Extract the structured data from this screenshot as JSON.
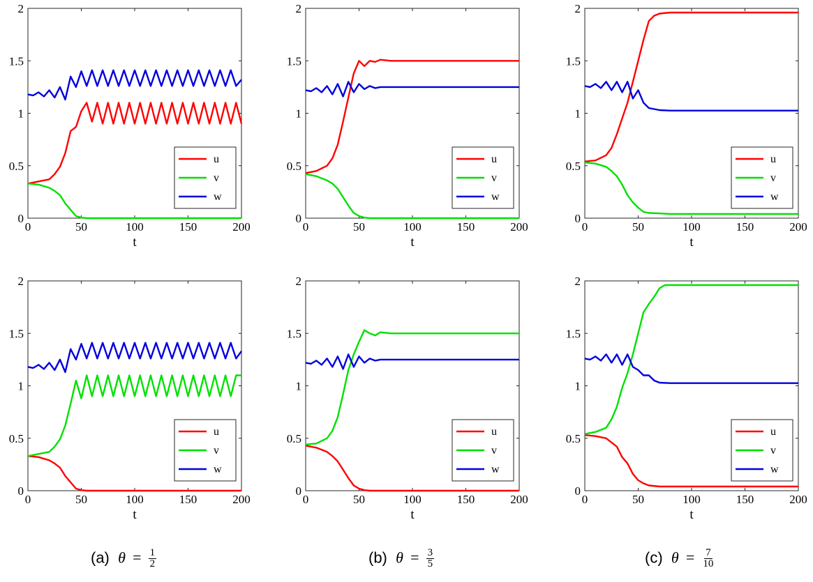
{
  "colors": {
    "u": "#ff0000",
    "v": "#00e000",
    "w": "#0000dd"
  },
  "captions": [
    {
      "label": "(a)",
      "theta": "θ",
      "eq": "=",
      "num": "1",
      "den": "2"
    },
    {
      "label": "(b)",
      "theta": "θ",
      "eq": "=",
      "num": "3",
      "den": "5"
    },
    {
      "label": "(c)",
      "theta": "θ",
      "eq": "=",
      "num": "7",
      "den": "10"
    }
  ],
  "chart_data": [
    {
      "type": "line",
      "panel": "a-top",
      "xlabel": "t",
      "ylabel": "",
      "xlim": [
        0,
        200
      ],
      "ylim": [
        0,
        2
      ],
      "xticks": [
        "0",
        "50",
        "100",
        "150",
        "200"
      ],
      "yticks": [
        "0",
        "0.5",
        "1",
        "1.5",
        "2"
      ],
      "legend": [
        "u",
        "v",
        "w"
      ],
      "series": [
        {
          "name": "u",
          "color": "#ff0000",
          "x": [
            0,
            10,
            20,
            25,
            30,
            35,
            40,
            45,
            50,
            55,
            60,
            65,
            70,
            75,
            80,
            85,
            90,
            95,
            100,
            105,
            110,
            115,
            120,
            125,
            130,
            135,
            140,
            145,
            150,
            155,
            160,
            165,
            170,
            175,
            180,
            185,
            190,
            195,
            200
          ],
          "y": [
            0.33,
            0.35,
            0.37,
            0.42,
            0.49,
            0.62,
            0.83,
            0.87,
            1.02,
            1.1,
            0.92,
            1.1,
            0.9,
            1.1,
            0.9,
            1.1,
            0.9,
            1.1,
            0.9,
            1.1,
            0.9,
            1.1,
            0.9,
            1.1,
            0.9,
            1.1,
            0.9,
            1.1,
            0.9,
            1.1,
            0.9,
            1.1,
            0.9,
            1.1,
            0.9,
            1.1,
            0.9,
            1.1,
            0.9
          ]
        },
        {
          "name": "v",
          "color": "#00e000",
          "x": [
            0,
            10,
            20,
            25,
            30,
            35,
            40,
            45,
            50,
            55,
            60,
            200
          ],
          "y": [
            0.33,
            0.32,
            0.29,
            0.26,
            0.22,
            0.14,
            0.08,
            0.02,
            0.005,
            0.0,
            0.0,
            0.0
          ]
        },
        {
          "name": "w",
          "color": "#0000dd",
          "x": [
            0,
            5,
            10,
            15,
            20,
            25,
            30,
            35,
            40,
            45,
            50,
            55,
            60,
            65,
            70,
            75,
            80,
            85,
            90,
            95,
            100,
            105,
            110,
            115,
            120,
            125,
            130,
            135,
            140,
            145,
            150,
            155,
            160,
            165,
            170,
            175,
            180,
            185,
            190,
            195,
            200
          ],
          "y": [
            1.18,
            1.17,
            1.2,
            1.16,
            1.22,
            1.15,
            1.25,
            1.13,
            1.35,
            1.25,
            1.4,
            1.26,
            1.41,
            1.26,
            1.41,
            1.26,
            1.41,
            1.26,
            1.41,
            1.26,
            1.41,
            1.26,
            1.41,
            1.26,
            1.41,
            1.26,
            1.41,
            1.26,
            1.41,
            1.26,
            1.41,
            1.26,
            1.41,
            1.26,
            1.41,
            1.26,
            1.41,
            1.26,
            1.41,
            1.26,
            1.32
          ]
        }
      ]
    },
    {
      "type": "line",
      "panel": "b-top",
      "xlabel": "t",
      "ylabel": "",
      "xlim": [
        0,
        200
      ],
      "ylim": [
        0,
        2
      ],
      "xticks": [
        "0",
        "50",
        "100",
        "150",
        "200"
      ],
      "yticks": [
        "0",
        "0.5",
        "1",
        "1.5",
        "2"
      ],
      "legend": [
        "u",
        "v",
        "w"
      ],
      "series": [
        {
          "name": "u",
          "color": "#ff0000",
          "x": [
            0,
            10,
            20,
            25,
            30,
            35,
            40,
            45,
            50,
            55,
            60,
            65,
            70,
            80,
            90,
            100,
            200
          ],
          "y": [
            0.43,
            0.45,
            0.5,
            0.57,
            0.7,
            0.92,
            1.15,
            1.38,
            1.5,
            1.45,
            1.5,
            1.49,
            1.51,
            1.5,
            1.5,
            1.5,
            1.5
          ]
        },
        {
          "name": "v",
          "color": "#00e000",
          "x": [
            0,
            10,
            20,
            25,
            30,
            35,
            40,
            45,
            50,
            55,
            60,
            200
          ],
          "y": [
            0.42,
            0.4,
            0.36,
            0.33,
            0.28,
            0.2,
            0.12,
            0.05,
            0.02,
            0.005,
            0.0,
            0.0
          ]
        },
        {
          "name": "w",
          "color": "#0000dd",
          "x": [
            0,
            5,
            10,
            15,
            20,
            25,
            30,
            35,
            40,
            45,
            50,
            55,
            60,
            65,
            70,
            80,
            90,
            100,
            200
          ],
          "y": [
            1.22,
            1.21,
            1.24,
            1.2,
            1.26,
            1.18,
            1.28,
            1.16,
            1.3,
            1.2,
            1.28,
            1.23,
            1.26,
            1.24,
            1.25,
            1.25,
            1.25,
            1.25,
            1.25
          ]
        }
      ]
    },
    {
      "type": "line",
      "panel": "c-top",
      "xlabel": "t",
      "ylabel": "",
      "xlim": [
        0,
        200
      ],
      "ylim": [
        0,
        2
      ],
      "xticks": [
        "0",
        "50",
        "100",
        "150",
        "200"
      ],
      "yticks": [
        "0",
        "0.5",
        "1",
        "1.5",
        "2"
      ],
      "legend": [
        "u",
        "v",
        "w"
      ],
      "series": [
        {
          "name": "u",
          "color": "#ff0000",
          "x": [
            0,
            10,
            20,
            25,
            30,
            35,
            40,
            45,
            50,
            55,
            60,
            65,
            70,
            80,
            90,
            100,
            200
          ],
          "y": [
            0.54,
            0.55,
            0.6,
            0.67,
            0.8,
            0.95,
            1.1,
            1.3,
            1.5,
            1.7,
            1.88,
            1.93,
            1.95,
            1.96,
            1.96,
            1.96,
            1.96
          ]
        },
        {
          "name": "v",
          "color": "#00e000",
          "x": [
            0,
            10,
            20,
            25,
            30,
            35,
            40,
            45,
            50,
            55,
            60,
            70,
            80,
            200
          ],
          "y": [
            0.53,
            0.52,
            0.49,
            0.45,
            0.4,
            0.32,
            0.22,
            0.15,
            0.1,
            0.06,
            0.05,
            0.045,
            0.04,
            0.04
          ]
        },
        {
          "name": "w",
          "color": "#0000dd",
          "x": [
            0,
            5,
            10,
            15,
            20,
            25,
            30,
            35,
            40,
            45,
            50,
            55,
            60,
            65,
            70,
            80,
            90,
            100,
            200
          ],
          "y": [
            1.26,
            1.25,
            1.28,
            1.24,
            1.3,
            1.22,
            1.3,
            1.2,
            1.3,
            1.14,
            1.22,
            1.1,
            1.05,
            1.04,
            1.03,
            1.025,
            1.025,
            1.025,
            1.025
          ]
        }
      ]
    },
    {
      "type": "line",
      "panel": "a-bottom",
      "xlabel": "t",
      "ylabel": "",
      "xlim": [
        0,
        200
      ],
      "ylim": [
        0,
        2
      ],
      "xticks": [
        "0",
        "50",
        "100",
        "150",
        "200"
      ],
      "yticks": [
        "0",
        "0.5",
        "1",
        "1.5",
        "2"
      ],
      "legend": [
        "u",
        "v",
        "w"
      ],
      "series": [
        {
          "name": "u",
          "color": "#ff0000",
          "x": [
            0,
            10,
            20,
            25,
            30,
            35,
            40,
            45,
            50,
            55,
            60,
            200
          ],
          "y": [
            0.33,
            0.32,
            0.29,
            0.26,
            0.22,
            0.14,
            0.08,
            0.02,
            0.005,
            0.0,
            0.0,
            0.0
          ]
        },
        {
          "name": "v",
          "color": "#00e000",
          "x": [
            0,
            10,
            20,
            25,
            30,
            35,
            40,
            45,
            50,
            55,
            60,
            65,
            70,
            75,
            80,
            85,
            90,
            95,
            100,
            105,
            110,
            115,
            120,
            125,
            130,
            135,
            140,
            145,
            150,
            155,
            160,
            165,
            170,
            175,
            180,
            185,
            190,
            195,
            200
          ],
          "y": [
            0.33,
            0.35,
            0.37,
            0.42,
            0.49,
            0.62,
            0.83,
            1.05,
            0.88,
            1.1,
            0.9,
            1.1,
            0.9,
            1.1,
            0.9,
            1.1,
            0.9,
            1.1,
            0.9,
            1.1,
            0.9,
            1.1,
            0.9,
            1.1,
            0.9,
            1.1,
            0.9,
            1.1,
            0.9,
            1.1,
            0.9,
            1.1,
            0.9,
            1.1,
            0.9,
            1.1,
            0.9,
            1.1,
            1.1
          ]
        },
        {
          "name": "w",
          "color": "#0000dd",
          "x": [
            0,
            5,
            10,
            15,
            20,
            25,
            30,
            35,
            40,
            45,
            50,
            55,
            60,
            65,
            70,
            75,
            80,
            85,
            90,
            95,
            100,
            105,
            110,
            115,
            120,
            125,
            130,
            135,
            140,
            145,
            150,
            155,
            160,
            165,
            170,
            175,
            180,
            185,
            190,
            195,
            200
          ],
          "y": [
            1.18,
            1.17,
            1.2,
            1.16,
            1.22,
            1.15,
            1.25,
            1.13,
            1.35,
            1.25,
            1.4,
            1.26,
            1.41,
            1.26,
            1.41,
            1.26,
            1.41,
            1.26,
            1.41,
            1.26,
            1.41,
            1.26,
            1.41,
            1.26,
            1.41,
            1.26,
            1.41,
            1.26,
            1.41,
            1.26,
            1.41,
            1.26,
            1.41,
            1.26,
            1.41,
            1.26,
            1.41,
            1.26,
            1.41,
            1.26,
            1.33
          ]
        }
      ]
    },
    {
      "type": "line",
      "panel": "b-bottom",
      "xlabel": "t",
      "ylabel": "",
      "xlim": [
        0,
        200
      ],
      "ylim": [
        0,
        2
      ],
      "xticks": [
        "0",
        "50",
        "100",
        "150",
        "200"
      ],
      "yticks": [
        "0",
        "0.5",
        "1",
        "1.5",
        "2"
      ],
      "legend": [
        "u",
        "v",
        "w"
      ],
      "series": [
        {
          "name": "u",
          "color": "#ff0000",
          "x": [
            0,
            10,
            20,
            25,
            30,
            35,
            40,
            45,
            50,
            55,
            60,
            200
          ],
          "y": [
            0.43,
            0.41,
            0.37,
            0.33,
            0.28,
            0.2,
            0.12,
            0.05,
            0.02,
            0.005,
            0.0,
            0.0
          ]
        },
        {
          "name": "v",
          "color": "#00e000",
          "x": [
            0,
            10,
            20,
            25,
            30,
            35,
            40,
            45,
            50,
            55,
            60,
            65,
            70,
            80,
            90,
            100,
            200
          ],
          "y": [
            0.44,
            0.45,
            0.5,
            0.57,
            0.7,
            0.92,
            1.15,
            1.3,
            1.42,
            1.53,
            1.5,
            1.48,
            1.51,
            1.5,
            1.5,
            1.5,
            1.5
          ]
        },
        {
          "name": "w",
          "color": "#0000dd",
          "x": [
            0,
            5,
            10,
            15,
            20,
            25,
            30,
            35,
            40,
            45,
            50,
            55,
            60,
            65,
            70,
            80,
            90,
            100,
            200
          ],
          "y": [
            1.22,
            1.21,
            1.24,
            1.2,
            1.26,
            1.18,
            1.28,
            1.16,
            1.3,
            1.18,
            1.28,
            1.22,
            1.26,
            1.24,
            1.25,
            1.25,
            1.25,
            1.25,
            1.25
          ]
        }
      ]
    },
    {
      "type": "line",
      "panel": "c-bottom",
      "xlabel": "t",
      "ylabel": "",
      "xlim": [
        0,
        200
      ],
      "ylim": [
        0,
        2
      ],
      "xticks": [
        "0",
        "50",
        "100",
        "150",
        "200"
      ],
      "yticks": [
        "0",
        "0.5",
        "1",
        "1.5",
        "2"
      ],
      "legend": [
        "u",
        "v",
        "w"
      ],
      "series": [
        {
          "name": "u",
          "color": "#ff0000",
          "x": [
            0,
            10,
            20,
            25,
            30,
            35,
            40,
            45,
            50,
            55,
            60,
            70,
            80,
            200
          ],
          "y": [
            0.53,
            0.52,
            0.5,
            0.46,
            0.42,
            0.32,
            0.26,
            0.16,
            0.1,
            0.07,
            0.05,
            0.04,
            0.04,
            0.04
          ]
        },
        {
          "name": "v",
          "color": "#00e000",
          "x": [
            0,
            10,
            20,
            25,
            30,
            35,
            40,
            45,
            50,
            55,
            60,
            65,
            70,
            75,
            80,
            90,
            100,
            200
          ],
          "y": [
            0.54,
            0.56,
            0.6,
            0.68,
            0.8,
            0.98,
            1.12,
            1.3,
            1.5,
            1.7,
            1.78,
            1.85,
            1.93,
            1.96,
            1.96,
            1.96,
            1.96,
            1.96
          ]
        },
        {
          "name": "w",
          "color": "#0000dd",
          "x": [
            0,
            5,
            10,
            15,
            20,
            25,
            30,
            35,
            40,
            45,
            50,
            55,
            60,
            65,
            70,
            80,
            90,
            100,
            200
          ],
          "y": [
            1.26,
            1.25,
            1.28,
            1.24,
            1.3,
            1.22,
            1.3,
            1.2,
            1.3,
            1.18,
            1.15,
            1.1,
            1.1,
            1.05,
            1.03,
            1.025,
            1.025,
            1.025,
            1.025
          ]
        }
      ]
    }
  ]
}
